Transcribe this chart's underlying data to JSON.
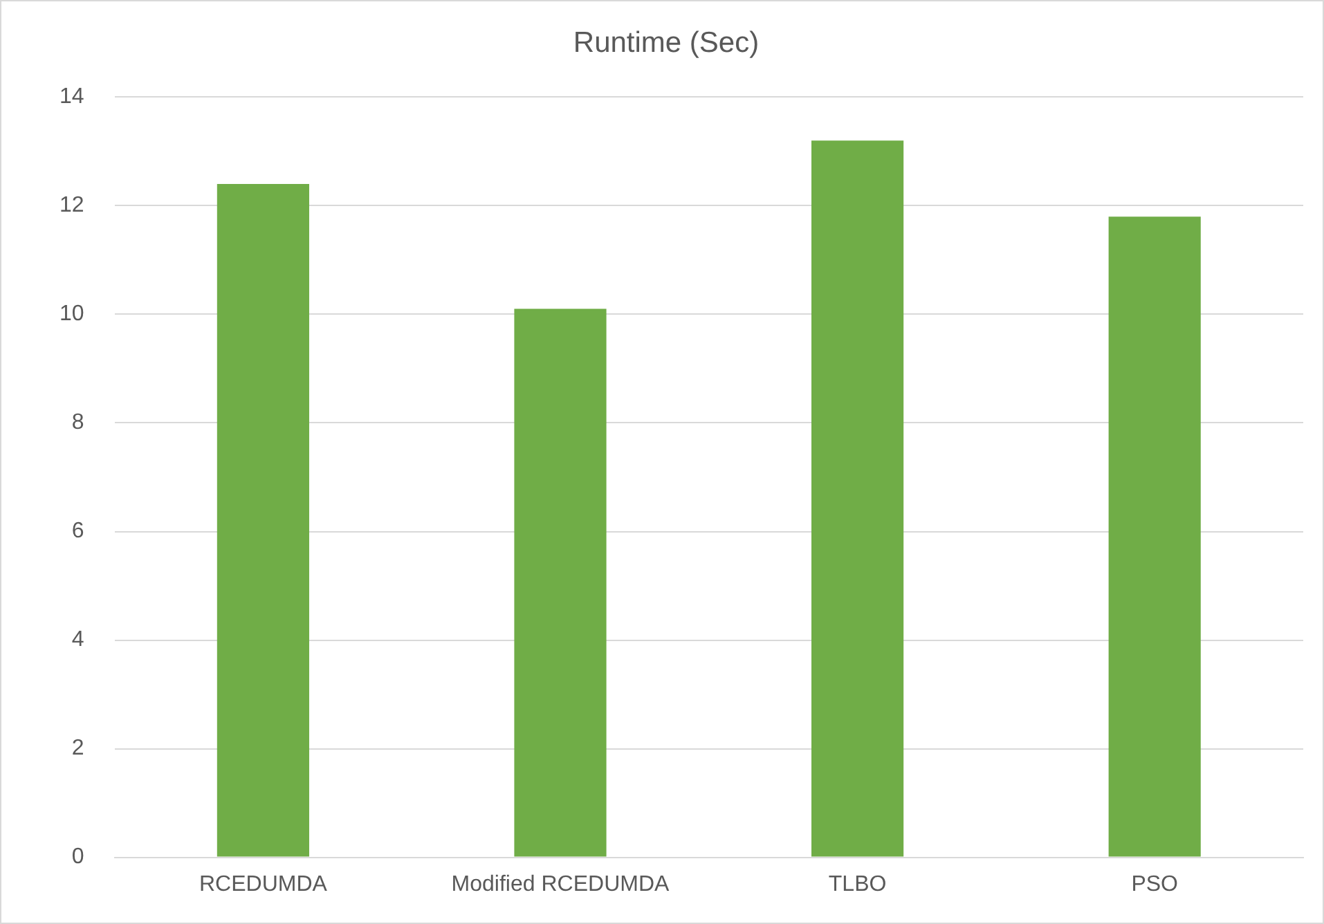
{
  "chart_data": {
    "type": "bar",
    "title": "Runtime (Sec)",
    "categories": [
      "RCEDUMDA",
      "Modified RCEDUMDA",
      "TLBO",
      "PSO"
    ],
    "values": [
      12.4,
      10.1,
      13.2,
      11.8
    ],
    "color": "#70ad47",
    "ylim": [
      0,
      14
    ],
    "yticks": [
      0,
      2,
      4,
      6,
      8,
      10,
      12,
      14
    ],
    "grid": "y",
    "legend": false
  }
}
